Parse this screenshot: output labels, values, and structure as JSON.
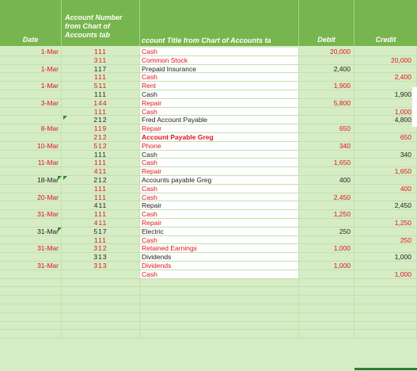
{
  "header": {
    "date": "Date",
    "account_number": [
      "Account Number",
      "from Chart of",
      "Accounts tab"
    ],
    "account_title": "ccount Title from Chart of Accounts ta",
    "debit": "Debit",
    "credit": "Credit"
  },
  "rows": [
    {
      "date": "1-Mar",
      "num": "111",
      "title": "Cash",
      "debit": "20,000",
      "credit": "",
      "red": true,
      "white_title": true
    },
    {
      "date": "",
      "num": "311",
      "title": "Common Stock",
      "debit": "",
      "credit": "20,000",
      "red": true,
      "white_title": true
    },
    {
      "date": "1-Mar",
      "num": "117",
      "title": "Prepaid Insurance",
      "debit": "2,400",
      "credit": "",
      "red": false,
      "white_title": true
    },
    {
      "date": "",
      "num": "111",
      "title": "Cash",
      "debit": "",
      "credit": "2,400",
      "red": true,
      "white_title": true
    },
    {
      "date": "1-Mar",
      "num": "511",
      "title": "Rent",
      "debit": "1,900",
      "credit": "",
      "red": true,
      "white_title": true
    },
    {
      "date": "",
      "num": "111",
      "title": "Cash",
      "debit": "",
      "credit": "1,900",
      "red": false,
      "white_title": true
    },
    {
      "date": "3-Mar",
      "num": "144",
      "title": "Repair",
      "debit": "5,800",
      "credit": "",
      "red": true,
      "white_title": true
    },
    {
      "date": "",
      "num": "111",
      "title": "Cash",
      "debit": "",
      "credit": "1,000",
      "red": true,
      "white_title": true
    },
    {
      "date": "",
      "num": "212",
      "title": "Fred Account Payable",
      "debit": "",
      "credit": "4,800",
      "red": false,
      "white_title": true,
      "tri": true
    },
    {
      "date": "8-Mar",
      "num": "119",
      "title": "Repair",
      "debit": "650",
      "credit": "",
      "red": true,
      "white_title": true
    },
    {
      "date": "",
      "num": "212",
      "title": "Account Payable Greg",
      "debit": "",
      "credit": "650",
      "red": true,
      "white_title": true,
      "bold": true
    },
    {
      "date": "10-Mar",
      "num": "512",
      "title": "Phone",
      "debit": "340",
      "credit": "",
      "red": true,
      "white_title": true
    },
    {
      "date": "",
      "num": "111",
      "title": "Cash",
      "debit": "",
      "credit": "340",
      "red": false,
      "white_title": true
    },
    {
      "date": "11-Mar",
      "num": "111",
      "title": "Cash",
      "debit": "1,650",
      "credit": "",
      "red": true,
      "white_title": true
    },
    {
      "date": "",
      "num": "411",
      "title": "Repair",
      "debit": "",
      "credit": "1,650",
      "red": true,
      "white_title": true
    },
    {
      "date": "18-Mar",
      "num": "212",
      "title": "Accounts payable Greg",
      "debit": "400",
      "credit": "",
      "red": false,
      "white_title": true,
      "tri": true,
      "tri_date": true
    },
    {
      "date": "",
      "num": "111",
      "title": "Cash",
      "debit": "",
      "credit": "400",
      "red": true,
      "white_title": true
    },
    {
      "date": "20-Mar",
      "num": "111",
      "title": "Cash",
      "debit": "2,450",
      "credit": "",
      "red": true,
      "white_title": true
    },
    {
      "date": "",
      "num": "411",
      "title": "Repair",
      "debit": "",
      "credit": "2,450",
      "red": false,
      "white_title": true
    },
    {
      "date": "31-Mar",
      "num": "111",
      "title": "Cash",
      "debit": "1,250",
      "credit": "",
      "red": true,
      "white_title": true
    },
    {
      "date": "",
      "num": "411",
      "title": "Repair",
      "debit": "",
      "credit": "1,250",
      "red": true,
      "white_title": true
    },
    {
      "date": "31-Mar",
      "num": "517",
      "title": "Electric",
      "debit": "250",
      "credit": "",
      "red": false,
      "white_title": true,
      "tri_date": true
    },
    {
      "date": "",
      "num": "111",
      "title": "Cash",
      "debit": "",
      "credit": "250",
      "red": true,
      "white_title": true
    },
    {
      "date": "31-Mar",
      "num": "312",
      "title": "Retained Earnings",
      "debit": "1,000",
      "credit": "",
      "red": true,
      "white_title": true
    },
    {
      "date": "",
      "num": "313",
      "title": "Dividends",
      "debit": "",
      "credit": "1,000",
      "red": false,
      "white_title": true
    },
    {
      "date": "31-Mar",
      "num": "313",
      "title": "Dividends",
      "debit": "1,000",
      "credit": "",
      "red": true,
      "white_title": true
    },
    {
      "date": "",
      "num": "",
      "title": "Cash",
      "debit": "",
      "credit": "1,000",
      "red": true,
      "white_title": true
    },
    {
      "date": "",
      "num": "",
      "title": "",
      "debit": "",
      "credit": "",
      "red": false,
      "white_title": false
    },
    {
      "date": "",
      "num": "",
      "title": "",
      "debit": "",
      "credit": "",
      "red": false,
      "white_title": false
    },
    {
      "date": "",
      "num": "",
      "title": "",
      "debit": "",
      "credit": "",
      "red": false,
      "white_title": false
    },
    {
      "date": "",
      "num": "",
      "title": "",
      "debit": "",
      "credit": "",
      "red": false,
      "white_title": false
    },
    {
      "date": "",
      "num": "",
      "title": "",
      "debit": "",
      "credit": "",
      "red": false,
      "white_title": false
    },
    {
      "date": "",
      "num": "",
      "title": "",
      "debit": "",
      "credit": "",
      "red": false,
      "white_title": false
    },
    {
      "date": "",
      "num": "",
      "title": "",
      "debit": "",
      "credit": "",
      "red": false,
      "white_title": false
    }
  ],
  "colors": {
    "header_bg": "#77b54e",
    "sheet_bg": "#d6ecc4",
    "red_text": "#e0141e"
  }
}
